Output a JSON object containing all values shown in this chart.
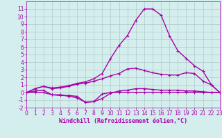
{
  "x": [
    0,
    1,
    2,
    3,
    4,
    5,
    6,
    7,
    8,
    9,
    10,
    11,
    12,
    13,
    14,
    15,
    16,
    17,
    18,
    19,
    20,
    21,
    22,
    23
  ],
  "line1": [
    0.0,
    0.0,
    0.0,
    -0.3,
    -0.4,
    -0.4,
    -0.5,
    -1.3,
    -1.2,
    -0.2,
    0.0,
    0.0,
    0.0,
    0.0,
    0.0,
    0.0,
    0.0,
    0.0,
    0.0,
    0.0,
    0.0,
    0.0,
    0.0,
    0.0
  ],
  "line2": [
    0.0,
    0.2,
    0.3,
    -0.3,
    -0.3,
    -0.5,
    -0.7,
    -1.3,
    -1.2,
    -0.8,
    -0.1,
    0.2,
    0.3,
    0.5,
    0.5,
    0.4,
    0.3,
    0.3,
    0.3,
    0.2,
    0.2,
    0.1,
    0.0,
    0.0
  ],
  "line3": [
    0.0,
    0.5,
    0.8,
    0.5,
    0.6,
    0.8,
    1.1,
    1.2,
    1.5,
    1.8,
    2.2,
    2.5,
    3.1,
    3.2,
    2.9,
    2.6,
    2.4,
    2.3,
    2.3,
    2.6,
    2.5,
    1.5,
    1.0,
    0.0
  ],
  "line4": [
    0.0,
    0.5,
    0.8,
    0.6,
    0.7,
    0.9,
    1.2,
    1.4,
    1.8,
    2.5,
    4.5,
    6.2,
    7.5,
    9.5,
    11.0,
    11.0,
    10.2,
    7.5,
    5.5,
    4.5,
    3.5,
    2.8,
    1.0,
    0.0
  ],
  "color": "#aa00aa",
  "bgcolor": "#d4eeed",
  "grid_color": "#b0c8c8",
  "xlabel": "Windchill (Refroidissement éolien,°C)",
  "ylim": [
    -2,
    12
  ],
  "xlim": [
    0,
    23
  ],
  "yticks": [
    -2,
    -1,
    0,
    1,
    2,
    3,
    4,
    5,
    6,
    7,
    8,
    9,
    10,
    11
  ],
  "xticks": [
    0,
    1,
    2,
    3,
    4,
    5,
    6,
    7,
    8,
    9,
    10,
    11,
    12,
    13,
    14,
    15,
    16,
    17,
    18,
    19,
    20,
    21,
    22,
    23
  ],
  "xlabel_fontsize": 6.0,
  "tick_fontsize": 5.5,
  "linewidth": 1.0,
  "markersize": 3.5
}
